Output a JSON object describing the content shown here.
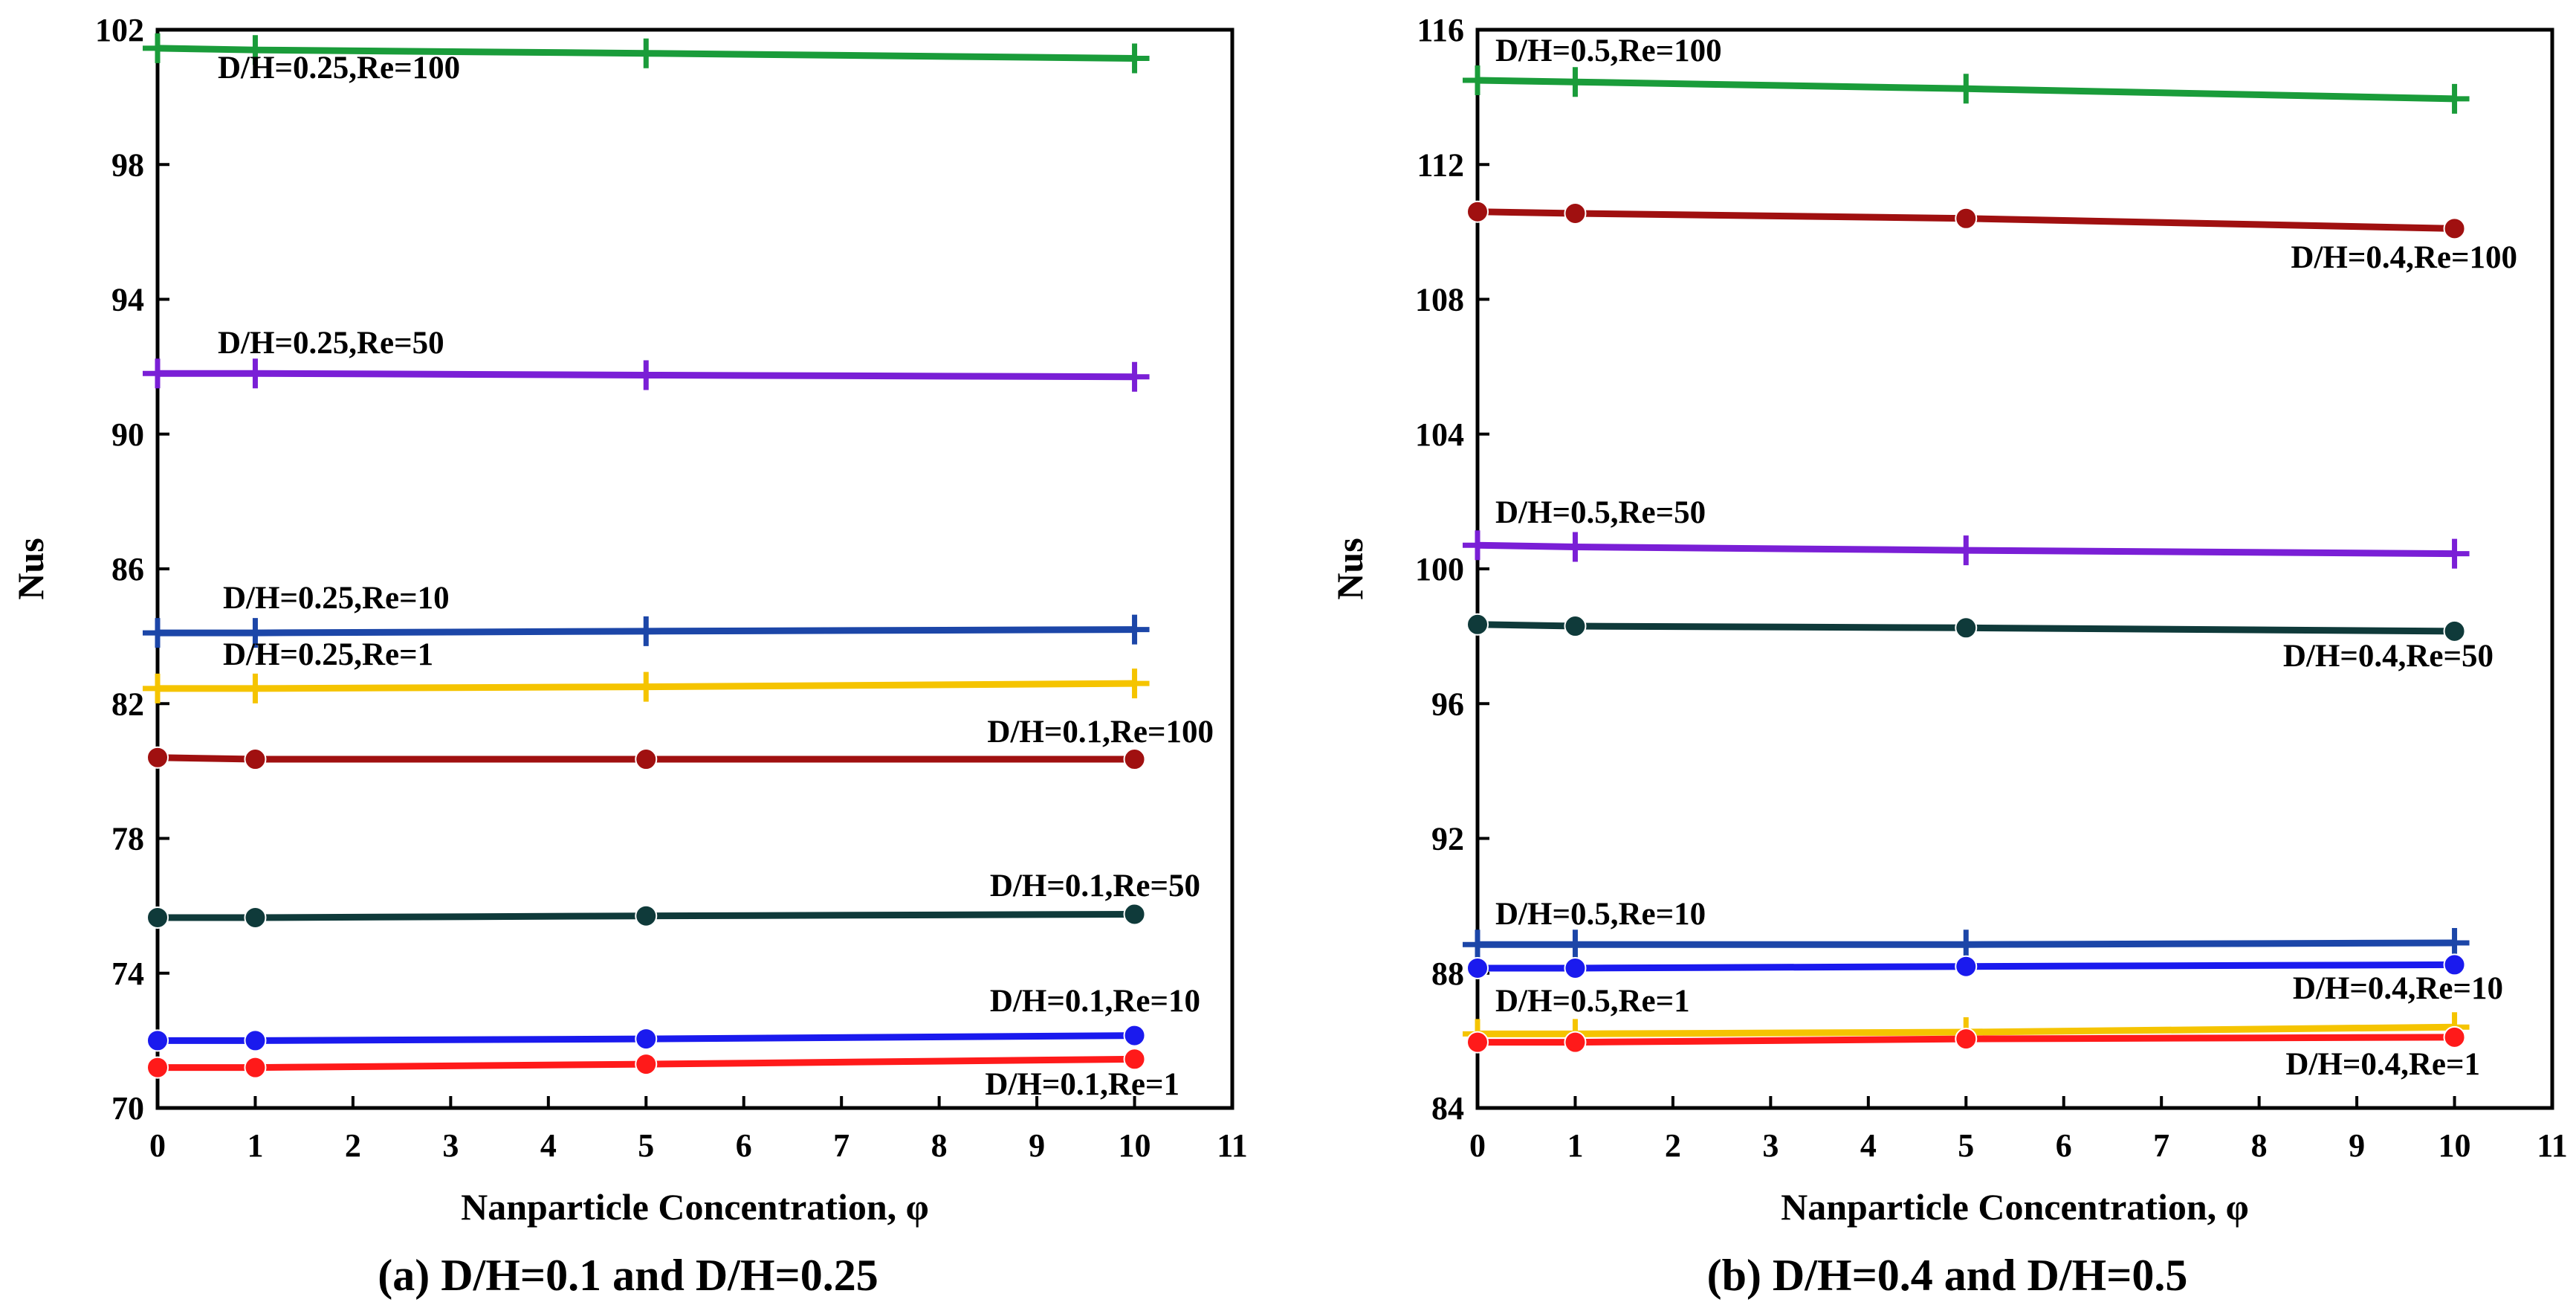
{
  "chart_data": [
    {
      "type": "line",
      "caption": "(a) D/H=0.1 and D/H=0.25",
      "xlabel": "Nanparticle Concentration, φ",
      "ylabel": "Nus",
      "xlim": [
        0,
        11
      ],
      "ylim": [
        70,
        102
      ],
      "xticks": [
        "0",
        "1",
        "2",
        "3",
        "4",
        "5",
        "6",
        "7",
        "8",
        "9",
        "10",
        "11"
      ],
      "yticks": [
        "70",
        "74",
        "78",
        "82",
        "86",
        "90",
        "94",
        "98",
        "102"
      ],
      "x": [
        0,
        1,
        5,
        10
      ],
      "series": [
        {
          "name": "D/H=0.25,Re=100",
          "marker": "plus",
          "color": "#1a9c3a",
          "values": [
            101.45,
            101.4,
            101.3,
            101.15
          ]
        },
        {
          "name": "D/H=0.25,Re=50",
          "marker": "plus",
          "color": "#7a1fd6",
          "values": [
            91.8,
            91.8,
            91.75,
            91.7
          ]
        },
        {
          "name": "D/H=0.25,Re=10",
          "marker": "plus",
          "color": "#1c46a8",
          "values": [
            84.1,
            84.1,
            84.15,
            84.2
          ]
        },
        {
          "name": "D/H=0.25,Re=1",
          "marker": "plus",
          "color": "#f5c400",
          "values": [
            82.45,
            82.45,
            82.5,
            82.6
          ]
        },
        {
          "name": "D/H=0.1,Re=100",
          "marker": "circle",
          "color": "#a01010",
          "values": [
            80.4,
            80.35,
            80.35,
            80.35
          ]
        },
        {
          "name": "D/H=0.1,Re=50",
          "marker": "circle",
          "color": "#0f3a3a",
          "values": [
            75.65,
            75.65,
            75.7,
            75.75
          ]
        },
        {
          "name": "D/H=0.1,Re=10",
          "marker": "circle",
          "color": "#1a1aee",
          "values": [
            72.0,
            72.0,
            72.05,
            72.15
          ]
        },
        {
          "name": "D/H=0.1,Re=1",
          "marker": "circle",
          "color": "#ff1a1a",
          "values": [
            71.2,
            71.2,
            71.3,
            71.45
          ]
        }
      ]
    },
    {
      "type": "line",
      "caption": "(b) D/H=0.4 and D/H=0.5",
      "xlabel": "Nanparticle Concentration, φ",
      "ylabel": "Nus",
      "xlim": [
        0,
        11
      ],
      "ylim": [
        84,
        116
      ],
      "xticks": [
        "0",
        "1",
        "2",
        "3",
        "4",
        "5",
        "6",
        "7",
        "8",
        "9",
        "10",
        "11"
      ],
      "yticks": [
        "84",
        "88",
        "92",
        "96",
        "100",
        "104",
        "108",
        "112",
        "116"
      ],
      "x": [
        0,
        1,
        5,
        10
      ],
      "series": [
        {
          "name": "D/H=0.5,Re=100",
          "marker": "plus",
          "color": "#1a9c3a",
          "values": [
            114.5,
            114.45,
            114.25,
            113.95
          ]
        },
        {
          "name": "D/H=0.4,Re=100",
          "marker": "circle",
          "color": "#a01010",
          "values": [
            110.6,
            110.55,
            110.4,
            110.1
          ]
        },
        {
          "name": "D/H=0.5,Re=50",
          "marker": "plus",
          "color": "#7a1fd6",
          "values": [
            100.7,
            100.65,
            100.55,
            100.45
          ]
        },
        {
          "name": "D/H=0.4,Re=50",
          "marker": "circle",
          "color": "#0f3a3a",
          "values": [
            98.35,
            98.3,
            98.25,
            98.15
          ]
        },
        {
          "name": "D/H=0.5,Re=10",
          "marker": "plus",
          "color": "#1c46a8",
          "values": [
            88.85,
            88.85,
            88.85,
            88.9
          ]
        },
        {
          "name": "D/H=0.4,Re=10",
          "marker": "circle",
          "color": "#1a1aee",
          "values": [
            88.15,
            88.15,
            88.2,
            88.25
          ]
        },
        {
          "name": "D/H=0.5,Re=1",
          "marker": "plus",
          "color": "#f5c400",
          "values": [
            86.2,
            86.2,
            86.25,
            86.4
          ]
        },
        {
          "name": "D/H=0.4,Re=1",
          "marker": "circle",
          "color": "#ff1a1a",
          "values": [
            85.95,
            85.95,
            86.05,
            86.1
          ]
        }
      ]
    }
  ]
}
